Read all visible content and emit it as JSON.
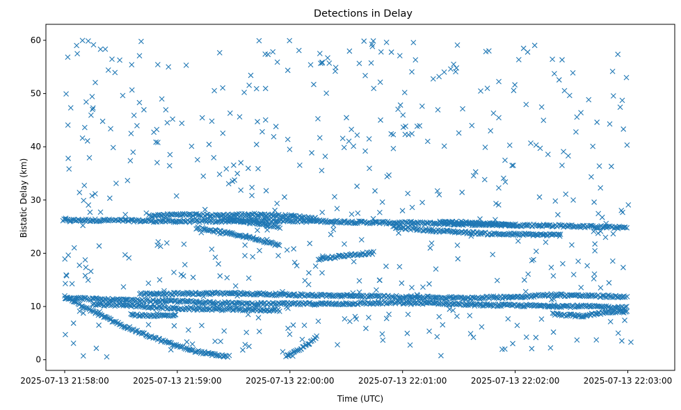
{
  "chart_data": {
    "type": "scatter",
    "title": "Detections in Delay",
    "xlabel": "Time (UTC)",
    "ylabel": "Bistatic Delay (km)",
    "x_ticks": [
      "2025-07-13 21:58:00",
      "2025-07-13 21:59:00",
      "2025-07-13 22:00:00",
      "2025-07-13 22:01:00",
      "2025-07-13 22:02:00",
      "2025-07-13 22:03:00"
    ],
    "y_ticks": [
      "0",
      "10",
      "20",
      "30",
      "40",
      "50",
      "60"
    ],
    "xlim": [
      "2025-07-13 21:57:50",
      "2025-07-13 22:03:25"
    ],
    "ylim": [
      -2,
      63
    ],
    "marker": "x",
    "color": "#1f77b4",
    "grid": false,
    "tracks": [
      {
        "description": "track",
        "points": [
          [
            "21:57:59",
            26.2
          ],
          [
            "21:58:20",
            26.2
          ],
          [
            "21:58:40",
            26.1
          ],
          [
            "21:59:00",
            26.0
          ],
          [
            "21:59:20",
            26.0
          ],
          [
            "21:59:40",
            26.2
          ],
          [
            "22:00:00",
            26.1
          ],
          [
            "22:00:20",
            26.0
          ],
          [
            "22:00:40",
            25.8
          ],
          [
            "22:01:00",
            25.7
          ],
          [
            "22:01:20",
            25.6
          ],
          [
            "22:01:40",
            25.4
          ],
          [
            "22:02:00",
            25.3
          ],
          [
            "22:02:20",
            25.2
          ],
          [
            "22:02:40",
            25.0
          ],
          [
            "22:03:00",
            24.8
          ]
        ]
      },
      {
        "description": "track",
        "points": [
          [
            "21:58:45",
            27.0
          ],
          [
            "21:59:00",
            27.3
          ],
          [
            "21:59:20",
            27.1
          ],
          [
            "21:59:40",
            27.3
          ],
          [
            "22:00:00",
            27.0
          ],
          [
            "22:00:15",
            26.5
          ]
        ]
      },
      {
        "description": "track",
        "points": [
          [
            "21:59:10",
            24.8
          ],
          [
            "21:59:25",
            23.9
          ],
          [
            "21:59:40",
            22.9
          ],
          [
            "21:59:55",
            21.4
          ]
        ]
      },
      {
        "description": "track",
        "points": [
          [
            "21:59:25",
            26.4
          ],
          [
            "21:59:40",
            25.7
          ],
          [
            "21:59:55",
            24.9
          ]
        ]
      },
      {
        "description": "track",
        "points": [
          [
            "22:00:15",
            18.9
          ],
          [
            "22:00:30",
            19.6
          ],
          [
            "22:00:45",
            20.1
          ]
        ]
      },
      {
        "description": "track",
        "points": [
          [
            "22:00:55",
            24.9
          ],
          [
            "22:01:15",
            24.3
          ],
          [
            "22:01:30",
            24.0
          ],
          [
            "22:01:50",
            23.6
          ],
          [
            "22:02:10",
            23.5
          ],
          [
            "22:02:25",
            23.4
          ]
        ]
      },
      {
        "description": "track",
        "points": [
          [
            "22:01:20",
            26.0
          ],
          [
            "22:01:40",
            25.6
          ],
          [
            "22:02:00",
            25.3
          ]
        ]
      },
      {
        "description": "track",
        "points": [
          [
            "21:58:00",
            11.7
          ],
          [
            "21:58:20",
            11.3
          ],
          [
            "21:58:40",
            11.1
          ],
          [
            "21:59:00",
            11.0
          ],
          [
            "21:59:20",
            10.7
          ],
          [
            "21:59:40",
            10.5
          ],
          [
            "22:00:00",
            10.5
          ],
          [
            "22:00:20",
            10.5
          ],
          [
            "22:00:40",
            10.6
          ],
          [
            "22:01:00",
            10.7
          ],
          [
            "22:01:20",
            10.6
          ],
          [
            "22:01:40",
            10.3
          ],
          [
            "22:02:00",
            10.2
          ],
          [
            "22:02:20",
            10.1
          ],
          [
            "22:02:40",
            10.0
          ],
          [
            "22:03:00",
            9.8
          ]
        ]
      },
      {
        "description": "track",
        "points": [
          [
            "21:58:00",
            11.8
          ],
          [
            "21:58:10",
            10.0
          ],
          [
            "21:58:20",
            8.2
          ],
          [
            "21:58:30",
            6.6
          ],
          [
            "21:58:40",
            5.1
          ],
          [
            "21:58:50",
            3.8
          ],
          [
            "21:59:00",
            2.6
          ],
          [
            "21:59:10",
            1.6
          ],
          [
            "21:59:20",
            0.9
          ],
          [
            "21:59:28",
            0.6
          ]
        ]
      },
      {
        "description": "track",
        "points": [
          [
            "21:58:15",
            10.4
          ],
          [
            "21:58:35",
            10.2
          ],
          [
            "21:58:50",
            9.8
          ],
          [
            "21:59:00",
            9.6
          ],
          [
            "21:59:20",
            9.5
          ],
          [
            "21:59:40",
            9.4
          ],
          [
            "21:59:55",
            9.3
          ]
        ]
      },
      {
        "description": "track",
        "points": [
          [
            "21:58:35",
            8.4
          ],
          [
            "21:58:50",
            8.3
          ],
          [
            "21:59:00",
            8.3
          ]
        ]
      },
      {
        "description": "track",
        "points": [
          [
            "21:58:40",
            12.3
          ],
          [
            "21:59:00",
            12.4
          ],
          [
            "21:59:20",
            12.5
          ],
          [
            "21:59:40",
            12.4
          ],
          [
            "22:00:00",
            12.2
          ],
          [
            "22:00:30",
            12.0
          ],
          [
            "22:01:00",
            11.8
          ],
          [
            "22:01:30",
            11.6
          ],
          [
            "22:02:00",
            11.8
          ],
          [
            "22:02:20",
            12.2
          ],
          [
            "22:02:40",
            12.0
          ],
          [
            "22:03:00",
            11.8
          ]
        ]
      },
      {
        "description": "track",
        "points": [
          [
            "21:59:58",
            0.8
          ],
          [
            "22:00:05",
            1.8
          ],
          [
            "22:00:10",
            3.0
          ],
          [
            "22:00:15",
            4.5
          ]
        ]
      },
      {
        "description": "track",
        "points": [
          [
            "22:02:20",
            8.6
          ],
          [
            "22:02:35",
            8.2
          ],
          [
            "22:02:50",
            9.0
          ],
          [
            "22:03:00",
            9.2
          ]
        ]
      }
    ],
    "background_clutter": {
      "count": 520,
      "x_range": [
        "21:57:59",
        "22:03:03"
      ],
      "y_range": [
        0.5,
        60
      ]
    }
  }
}
